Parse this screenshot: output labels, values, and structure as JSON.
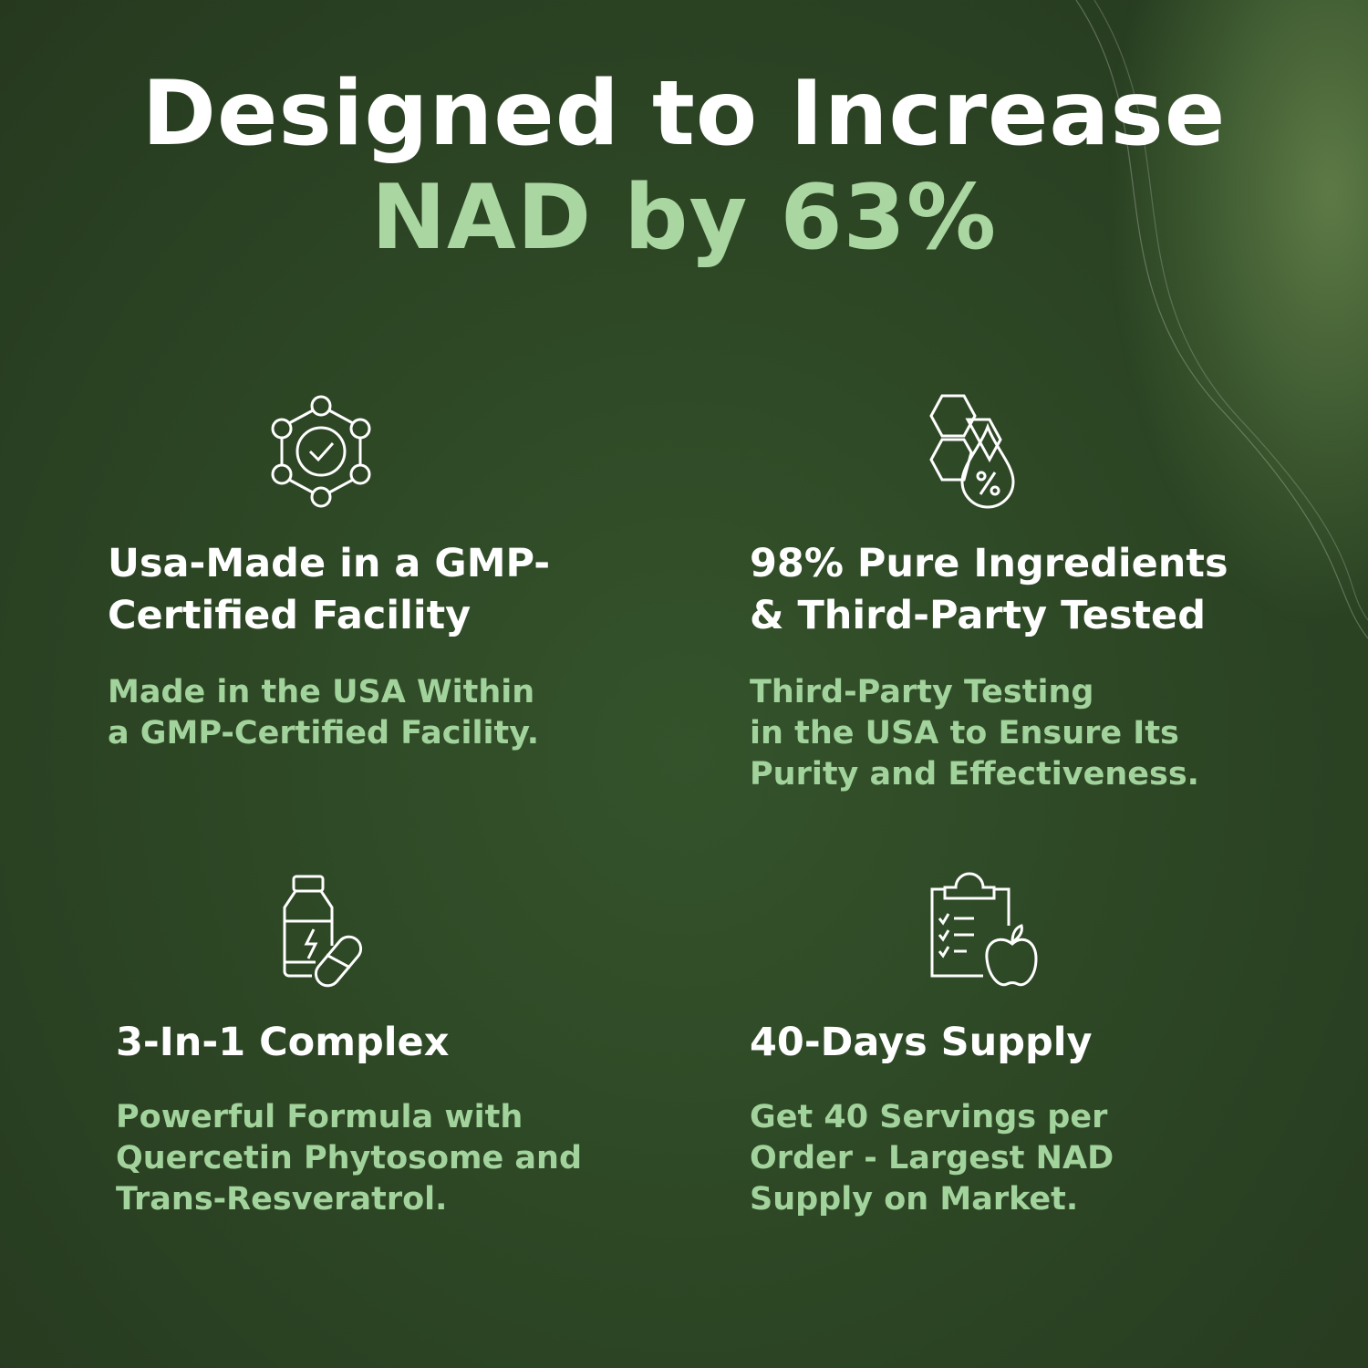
{
  "headline": {
    "line1": "Designed to Increase",
    "line2": "NAD by 63%"
  },
  "colors": {
    "background": "#2c4524",
    "accent": "#a9d6a1",
    "heading": "#ffffff"
  },
  "features": [
    {
      "icon": "certified-network-check-icon",
      "title": "Usa-Made in a GMP-\nCertified Facility",
      "text": "Made in the USA Within\na GMP-Certified Facility."
    },
    {
      "icon": "hexagon-drop-percent-icon",
      "title": "98% Pure Ingredients\n& Third-Party Tested",
      "text": "Third-Party Testing\nin the USA to Ensure Its\nPurity and Effectiveness."
    },
    {
      "icon": "supplement-bottle-pill-icon",
      "title": "3-In-1 Complex",
      "text": "Powerful Formula with\nQuercetin Phytosome and\nTrans-Resveratrol."
    },
    {
      "icon": "clipboard-apple-icon",
      "title": "40-Days Supply",
      "text": "Get 40 Servings per\nOrder -  Largest NAD\nSupply on Market."
    }
  ]
}
